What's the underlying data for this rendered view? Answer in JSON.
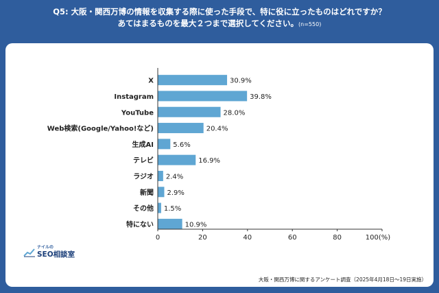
{
  "header": {
    "question": "Q5: 大阪・関西万博の情報を収集する際に使った手段で、特に役に立ったものはどれですか？",
    "instruction": "あてはまるものを最大２つまで選択してください。",
    "sample": "(n=550)"
  },
  "chart_data": {
    "type": "bar",
    "orientation": "horizontal",
    "categories": [
      "X",
      "Instagram",
      "YouTube",
      "Web検索(Google/Yahoo!など)",
      "生成AI",
      "テレビ",
      "ラジオ",
      "新聞",
      "その他",
      "特にない"
    ],
    "values": [
      30.9,
      39.8,
      28.0,
      20.4,
      5.6,
      16.9,
      2.4,
      2.9,
      1.5,
      10.9
    ],
    "value_labels": [
      "30.9%",
      "39.8%",
      "28.0%",
      "20.4%",
      "5.6%",
      "16.9%",
      "2.4%",
      "2.9%",
      "1.5%",
      "10.9%"
    ],
    "x_ticks": [
      "0",
      "20",
      "40",
      "60",
      "80",
      "100(%)"
    ],
    "xlim": [
      0,
      100
    ],
    "bar_color": "#5fa6d3",
    "grid": false
  },
  "logo": {
    "small": "ナイルの",
    "main": "SEO相談室"
  },
  "footer": {
    "source": "大阪・関西万博に関するアンケート調査（2025年4月18日〜19日実施）"
  },
  "colors": {
    "background": "#2f5d9d",
    "card": "#ffffff",
    "bar": "#5fa6d3",
    "logo": "#1b3f7a"
  }
}
